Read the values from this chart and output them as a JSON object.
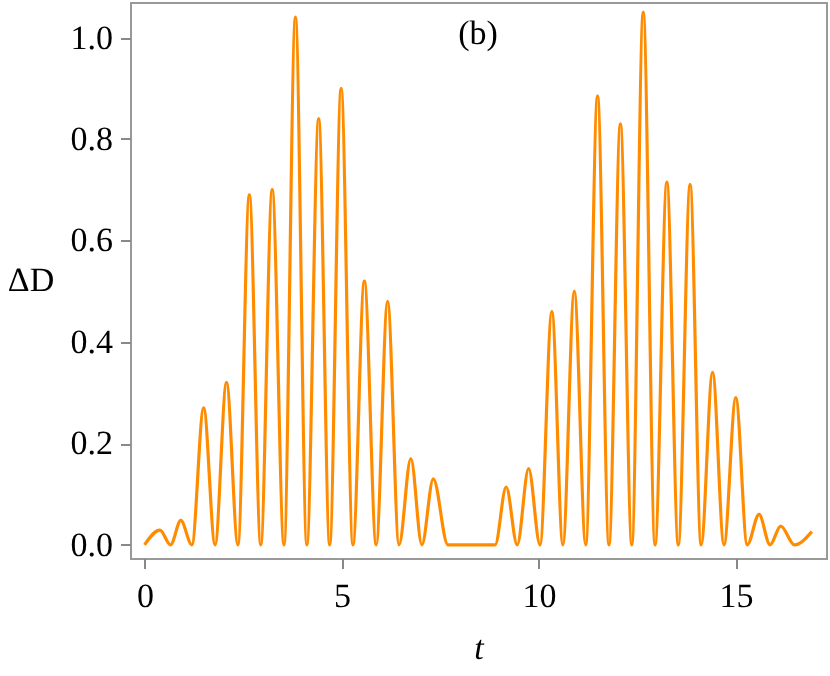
{
  "chart_data": {
    "type": "line",
    "xlabel": "t",
    "ylabel": "ΔD",
    "annotations": [
      "(b)"
    ],
    "x": [
      0,
      0.39,
      0.66,
      0.92,
      1.2,
      1.5,
      1.79,
      2.08,
      2.37,
      2.66,
      2.95,
      3.24,
      3.54,
      3.83,
      4.12,
      4.42,
      4.7,
      4.99,
      5.29,
      5.58,
      5.88,
      6.17,
      6.46,
      6.76,
      7.04,
      7.33,
      7.7,
      8.9,
      9.18,
      9.46,
      9.75,
      10.04,
      10.34,
      10.62,
      10.91,
      11.2,
      11.5,
      11.79,
      12.08,
      12.37,
      12.66,
      12.96,
      13.26,
      13.55,
      13.85,
      14.13,
      14.42,
      14.71,
      15.01,
      15.3,
      15.6,
      15.88,
      16.15,
      16.5,
      16.94
    ],
    "series": [
      {
        "color": "#ff8c00",
        "values": [
          0,
          0.029,
          0,
          0.048,
          0,
          0.27,
          0,
          0.32,
          0,
          0.69,
          0,
          0.7,
          0,
          1.04,
          0,
          0.84,
          0,
          0.9,
          0,
          0.52,
          0,
          0.48,
          0,
          0.17,
          0,
          0.13,
          0,
          0,
          0.114,
          0,
          0.15,
          0,
          0.46,
          0,
          0.5,
          0,
          0.885,
          0,
          0.83,
          0,
          1.05,
          0,
          0.715,
          0,
          0.71,
          0,
          0.34,
          0,
          0.29,
          0,
          0.06,
          0,
          0.037,
          0,
          0.026
        ]
      }
    ],
    "xlim": [
      -0.37,
      17.3
    ],
    "ylim": [
      -0.026,
      1.07
    ],
    "xticks": [
      0,
      5,
      10,
      15
    ],
    "yticks": [
      {
        "value": 0,
        "label": "0.0"
      },
      {
        "value": 0.2,
        "label": "0.2"
      },
      {
        "value": 0.4,
        "label": "0.4"
      },
      {
        "value": 0.6,
        "label": "0.6"
      },
      {
        "value": 0.8,
        "label": "0.8"
      },
      {
        "value": 1.0,
        "label": "1.0"
      }
    ],
    "grid": false
  }
}
